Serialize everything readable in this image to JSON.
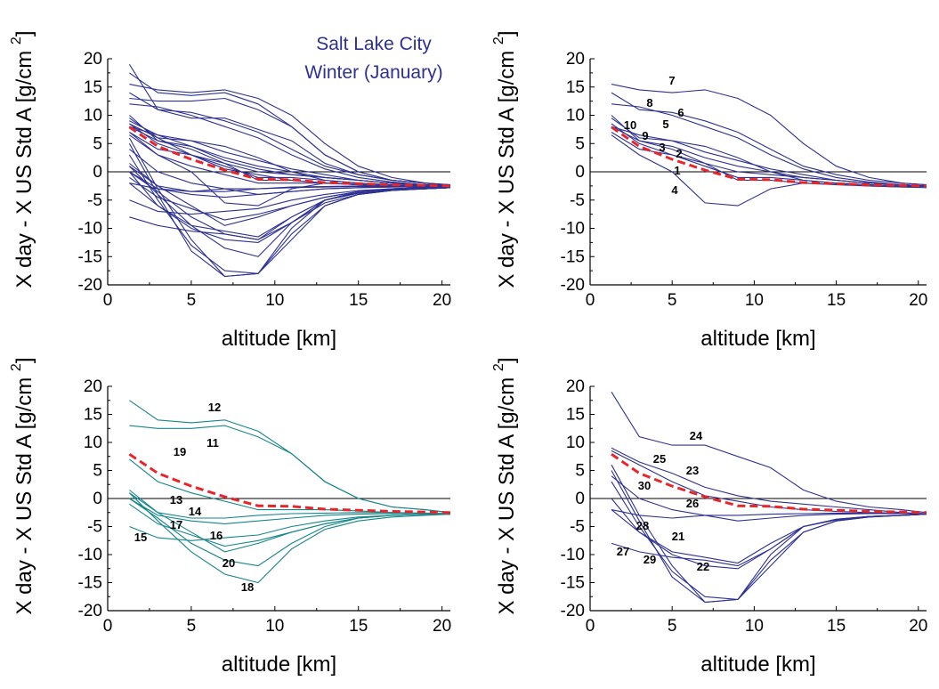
{
  "figure": {
    "title_line1": "Salt Lake City",
    "title_line2": "Winter  (January)",
    "title_color": "#2e3192"
  },
  "chart_data": [
    {
      "type": "line",
      "panel": "top-left",
      "xlabel": "altitude [km]",
      "ylabel": "X day - X US Std A [g/cm 2]",
      "xlim": [
        0,
        20.5
      ],
      "ylim": [
        -20,
        20
      ],
      "x_ticks": [
        "0",
        "5",
        "10",
        "15",
        "20"
      ],
      "y_ticks": [
        "20",
        "15",
        "10",
        "5",
        "0",
        "-5",
        "-10",
        "-15",
        "-20"
      ],
      "zero_line": true,
      "grid": false,
      "colors": {
        "series": "#2e3192",
        "mean": "#e8262a",
        "axis": "#000000"
      },
      "x": [
        1.3,
        3,
        5,
        7,
        9,
        11,
        13,
        15,
        17,
        19,
        20.5
      ],
      "series": [
        {
          "values": [
            7,
            4,
            3,
            1.5,
            -1.5,
            -1.5,
            -2,
            -2.2,
            -2.5,
            -2.7,
            -2.5
          ]
        },
        {
          "values": [
            8,
            5.5,
            4,
            1.5,
            0,
            -0.5,
            -1,
            -1.5,
            -2,
            -2.3,
            -2.5
          ]
        },
        {
          "values": [
            8.5,
            5,
            3,
            1,
            -1,
            -1,
            -1.5,
            -2,
            -2.3,
            -2.5,
            -2.6
          ]
        },
        {
          "values": [
            6.5,
            3,
            0,
            -5.5,
            -6,
            -3,
            -2,
            -2.3,
            -2.5,
            -2.7,
            -2.8
          ]
        },
        {
          "values": [
            9.5,
            6,
            5.5,
            4.5,
            2.5,
            0,
            -1.5,
            -2,
            -2.3,
            -2.5,
            -2.6
          ]
        },
        {
          "values": [
            12,
            11.5,
            10,
            8,
            6,
            3,
            0.5,
            -1,
            -1.8,
            -2.3,
            -2.5
          ]
        },
        {
          "values": [
            15.5,
            14.5,
            14,
            14.5,
            13,
            10,
            5,
            1,
            -1,
            -2,
            -2.3
          ]
        },
        {
          "values": [
            14,
            11,
            10.5,
            9,
            7,
            4,
            1,
            -0.5,
            -1.5,
            -2,
            -2.3
          ]
        },
        {
          "values": [
            10,
            5.5,
            4.5,
            2.5,
            1,
            0,
            -1,
            -1.5,
            -2,
            -2.3,
            -2.5
          ]
        },
        {
          "values": [
            8,
            6.5,
            5.5,
            3.5,
            2,
            0.5,
            -0.5,
            -1.5,
            -2,
            -2.3,
            -2.5
          ]
        },
        {
          "values": [
            13,
            12.5,
            12.5,
            13,
            11,
            8,
            3,
            0,
            -1.5,
            -2,
            -2.5
          ]
        },
        {
          "values": [
            17.5,
            14,
            13.5,
            14,
            12,
            8,
            3,
            0,
            -1.5,
            -2,
            -2.5
          ]
        },
        {
          "values": [
            1,
            -2.5,
            -3.5,
            -3.5,
            -3,
            -2.7,
            -2.6,
            -2.5,
            -2.5,
            -2.6,
            -2.7
          ]
        },
        {
          "values": [
            0,
            -3,
            -4,
            -4.5,
            -4,
            -3.5,
            -3,
            -2.8,
            -2.7,
            -2.6,
            -2.7
          ]
        },
        {
          "values": [
            -5,
            -7,
            -7.5,
            -7,
            -6.5,
            -5,
            -4,
            -3.3,
            -3,
            -2.8,
            -2.8
          ]
        },
        {
          "values": [
            1.5,
            -2.5,
            -6,
            -9.5,
            -8,
            -6,
            -4.5,
            -3.5,
            -3,
            -2.8,
            -2.8
          ]
        },
        {
          "values": [
            -1,
            -4.5,
            -6.5,
            -8.5,
            -7.5,
            -6,
            -4.5,
            -3.5,
            -3,
            -2.8,
            -2.8
          ]
        },
        {
          "values": [
            1,
            -4,
            -9.5,
            -13.5,
            -15,
            -9,
            -5.5,
            -4,
            -3.3,
            -3,
            -2.8
          ]
        },
        {
          "values": [
            7,
            3,
            1,
            -0.5,
            -2,
            -2,
            -2,
            -2.2,
            -2.5,
            -2.7,
            -2.8
          ]
        },
        {
          "values": [
            0,
            -3.5,
            -8,
            -11,
            -12,
            -8,
            -5,
            -3.5,
            -3,
            -2.8,
            -2.8
          ]
        },
        {
          "values": [
            -2,
            -6,
            -9.5,
            -10.5,
            -11.5,
            -8,
            -5,
            -3.8,
            -3.2,
            -3,
            -2.8
          ]
        },
        {
          "values": [
            5,
            -4,
            -14,
            -18.5,
            -18,
            -11,
            -6,
            -4,
            -3.3,
            -3,
            -2.8
          ]
        },
        {
          "values": [
            4,
            0,
            -2,
            -3,
            -4,
            -3.5,
            -3,
            -2.8,
            -2.7,
            -2.7,
            -2.7
          ]
        },
        {
          "values": [
            19,
            11,
            9.5,
            9.5,
            7.5,
            5.5,
            1.5,
            -0.5,
            -1.5,
            -2,
            -2.5
          ]
        },
        {
          "values": [
            9,
            6.5,
            4.5,
            2,
            0.5,
            -0.5,
            -1,
            -1.5,
            -2,
            -2.5,
            -2.7
          ]
        },
        {
          "values": [
            8.5,
            6,
            3,
            0.5,
            -0.5,
            -1.5,
            -2,
            -2.3,
            -2.5,
            -2.6,
            -2.7
          ]
        },
        {
          "values": [
            -2,
            -3,
            -3.5,
            -3,
            -3,
            -2.8,
            -2.7,
            -2.6,
            -2.6,
            -2.7,
            -2.8
          ]
        },
        {
          "values": [
            0,
            -6,
            -10,
            -12,
            -12.5,
            -9,
            -5,
            -3.7,
            -3.2,
            -3,
            -2.8
          ]
        },
        {
          "values": [
            3,
            -5,
            -13,
            -17.5,
            -18,
            -12,
            -6,
            -4,
            -3.3,
            -3,
            -2.8
          ]
        },
        {
          "values": [
            6,
            -3,
            -12,
            -18.5,
            -18,
            -10,
            -5,
            -3.7,
            -3.2,
            -3,
            -2.8
          ]
        },
        {
          "values": [
            -8,
            -9.5,
            -10.5,
            -11,
            -12,
            -9,
            -5,
            -3.8,
            -3.2,
            -3,
            -2.8
          ]
        }
      ],
      "mean_series": {
        "values": [
          7.9,
          4.5,
          2.2,
          0.3,
          -1.3,
          -1.4,
          -1.9,
          -2.1,
          -2.3,
          -2.4,
          -2.5
        ]
      }
    },
    {
      "type": "line",
      "panel": "top-right",
      "xlabel": "altitude [km]",
      "ylabel": "X day - X US Std A [g/cm 2]",
      "xlim": [
        0,
        20.5
      ],
      "ylim": [
        -20,
        20
      ],
      "x_ticks": [
        "0",
        "5",
        "10",
        "15",
        "20"
      ],
      "y_ticks": [
        "20",
        "15",
        "10",
        "5",
        "0",
        "-5",
        "-10",
        "-15",
        "-20"
      ],
      "zero_line": true,
      "grid": false,
      "colors": {
        "series": "#2e3192",
        "mean": "#e8262a",
        "axis": "#000000"
      },
      "x": [
        1.3,
        3,
        5,
        7,
        9,
        11,
        13,
        15,
        17,
        19,
        20.5
      ],
      "series": [
        {
          "label": "1",
          "values": [
            7,
            4,
            3,
            1.5,
            -1.5,
            -1.5,
            -2,
            -2.2,
            -2.5,
            -2.7,
            -2.5
          ]
        },
        {
          "label": "2",
          "values": [
            8,
            5.5,
            4,
            1.5,
            0,
            -0.5,
            -1,
            -1.5,
            -2,
            -2.3,
            -2.5
          ]
        },
        {
          "label": "3",
          "values": [
            8.5,
            5,
            3,
            1,
            -1,
            -1,
            -1.5,
            -2,
            -2.3,
            -2.5,
            -2.6
          ]
        },
        {
          "label": "4",
          "values": [
            6.5,
            3,
            0,
            -5.5,
            -6,
            -3,
            -2,
            -2.3,
            -2.5,
            -2.7,
            -2.8
          ]
        },
        {
          "label": "5",
          "values": [
            9.5,
            6,
            5.5,
            4.5,
            2.5,
            0,
            -1.5,
            -2,
            -2.3,
            -2.5,
            -2.6
          ]
        },
        {
          "label": "6",
          "values": [
            12,
            11.5,
            10,
            8,
            6,
            3,
            0.5,
            -1,
            -1.8,
            -2.3,
            -2.5
          ]
        },
        {
          "label": "7",
          "values": [
            15.5,
            14.5,
            14,
            14.5,
            13,
            10,
            5,
            1,
            -1,
            -2,
            -2.3
          ]
        },
        {
          "label": "8",
          "values": [
            14,
            11,
            10.5,
            9,
            7,
            4,
            1,
            -0.5,
            -1.5,
            -2,
            -2.3
          ]
        },
        {
          "label": "9",
          "values": [
            10,
            5.5,
            4.5,
            2.5,
            1,
            0,
            -1,
            -1.5,
            -2,
            -2.3,
            -2.5
          ]
        },
        {
          "label": "10",
          "values": [
            8,
            6.5,
            5.5,
            3.5,
            2,
            0.5,
            -0.5,
            -1.5,
            -2,
            -2.3,
            -2.5
          ]
        }
      ],
      "mean_series": {
        "values": [
          7.9,
          4.5,
          2.2,
          0.3,
          -1.3,
          -1.4,
          -1.9,
          -2.1,
          -2.3,
          -2.4,
          -2.5
        ]
      }
    },
    {
      "type": "line",
      "panel": "bottom-left",
      "xlabel": "altitude [km]",
      "ylabel": "X day - X US Std A [g/cm 2]",
      "xlim": [
        0,
        20.5
      ],
      "ylim": [
        -20,
        20
      ],
      "x_ticks": [
        "0",
        "5",
        "10",
        "15",
        "20"
      ],
      "y_ticks": [
        "20",
        "15",
        "10",
        "5",
        "0",
        "-5",
        "-10",
        "-15",
        "-20"
      ],
      "zero_line": true,
      "grid": false,
      "colors": {
        "series": "#16868a",
        "mean": "#e8262a",
        "axis": "#000000"
      },
      "x": [
        1.3,
        3,
        5,
        7,
        9,
        11,
        13,
        15,
        17,
        19,
        20.5
      ],
      "series": [
        {
          "label": "11",
          "values": [
            13,
            12.5,
            12.5,
            13,
            11,
            8,
            3,
            0,
            -1.5,
            -2,
            -2.5
          ]
        },
        {
          "label": "12",
          "values": [
            17.5,
            14,
            13.5,
            14,
            12,
            8,
            3,
            0,
            -1.5,
            -2,
            -2.5
          ]
        },
        {
          "label": "13",
          "values": [
            1,
            -2.5,
            -3.5,
            -3.5,
            -3,
            -2.7,
            -2.6,
            -2.5,
            -2.5,
            -2.6,
            -2.7
          ]
        },
        {
          "label": "14",
          "values": [
            0,
            -3,
            -4,
            -4.5,
            -4,
            -3.5,
            -3,
            -2.8,
            -2.7,
            -2.6,
            -2.7
          ]
        },
        {
          "label": "15",
          "values": [
            -5,
            -7,
            -7.5,
            -7,
            -6.5,
            -5,
            -4,
            -3.3,
            -3,
            -2.8,
            -2.8
          ]
        },
        {
          "label": "16",
          "values": [
            1.5,
            -2.5,
            -6,
            -9.5,
            -8,
            -6,
            -4.5,
            -3.5,
            -3,
            -2.8,
            -2.8
          ]
        },
        {
          "label": "17",
          "values": [
            -1,
            -4.5,
            -6.5,
            -8.5,
            -7.5,
            -6,
            -4.5,
            -3.5,
            -3,
            -2.8,
            -2.8
          ]
        },
        {
          "label": "18",
          "values": [
            1,
            -4,
            -9.5,
            -13.5,
            -15,
            -9,
            -5.5,
            -4,
            -3.3,
            -3,
            -2.8
          ]
        },
        {
          "label": "19",
          "values": [
            7,
            3,
            1,
            -0.5,
            -2,
            -2,
            -2,
            -2.2,
            -2.5,
            -2.7,
            -2.8
          ]
        },
        {
          "label": "20",
          "values": [
            0,
            -3.5,
            -8,
            -11,
            -12,
            -8,
            -5,
            -3.5,
            -3,
            -2.8,
            -2.8
          ]
        }
      ],
      "mean_series": {
        "values": [
          7.9,
          4.5,
          2.2,
          0.3,
          -1.3,
          -1.4,
          -1.9,
          -2.1,
          -2.3,
          -2.4,
          -2.5
        ]
      }
    },
    {
      "type": "line",
      "panel": "bottom-right",
      "xlabel": "altitude [km]",
      "ylabel": "X day - X US Std A [g/cm 2]",
      "xlim": [
        0,
        20.5
      ],
      "ylim": [
        -20,
        20
      ],
      "x_ticks": [
        "0",
        "5",
        "10",
        "15",
        "20"
      ],
      "y_ticks": [
        "20",
        "15",
        "10",
        "5",
        "0",
        "-5",
        "-10",
        "-15",
        "-20"
      ],
      "zero_line": true,
      "grid": false,
      "colors": {
        "series": "#2e3192",
        "mean": "#e8262a",
        "axis": "#000000"
      },
      "x": [
        1.3,
        3,
        5,
        7,
        9,
        11,
        13,
        15,
        17,
        19,
        20.5
      ],
      "series": [
        {
          "label": "21",
          "values": [
            -2,
            -6,
            -9.5,
            -10.5,
            -11.5,
            -8,
            -5,
            -3.8,
            -3.2,
            -3,
            -2.8
          ]
        },
        {
          "label": "22",
          "values": [
            5,
            -4,
            -14,
            -18.5,
            -18,
            -11,
            -6,
            -4,
            -3.3,
            -3,
            -2.8
          ]
        },
        {
          "label": "23",
          "values": [
            4,
            0,
            -2,
            -3,
            -4,
            -3.5,
            -3,
            -2.8,
            -2.7,
            -2.7,
            -2.7
          ]
        },
        {
          "label": "24",
          "values": [
            19,
            11,
            9.5,
            9.5,
            7.5,
            5.5,
            1.5,
            -0.5,
            -1.5,
            -2,
            -2.5
          ]
        },
        {
          "label": "25",
          "values": [
            9,
            6.5,
            4.5,
            2,
            0.5,
            -0.5,
            -1,
            -1.5,
            -2,
            -2.5,
            -2.7
          ]
        },
        {
          "label": "26",
          "values": [
            8.5,
            6,
            3,
            0.5,
            -0.5,
            -1.5,
            -2,
            -2.3,
            -2.5,
            -2.6,
            -2.7
          ]
        },
        {
          "label": "27",
          "values": [
            -2,
            -3,
            -3.5,
            -3,
            -3,
            -2.8,
            -2.7,
            -2.6,
            -2.6,
            -2.7,
            -2.8
          ]
        },
        {
          "label": "28",
          "values": [
            0,
            -6,
            -10,
            -12,
            -12.5,
            -9,
            -5,
            -3.7,
            -3.2,
            -3,
            -2.8
          ]
        },
        {
          "label": "29",
          "values": [
            3,
            -5,
            -13,
            -17.5,
            -18,
            -12,
            -6,
            -4,
            -3.3,
            -3,
            -2.8
          ]
        },
        {
          "label": "30",
          "values": [
            6,
            -3,
            -12,
            -18.5,
            -18,
            -10,
            -5,
            -3.7,
            -3.2,
            -3,
            -2.8
          ]
        },
        {
          "values": [
            -8,
            -9.5,
            -10.5,
            -11,
            -12,
            -9,
            -5,
            -3.8,
            -3.2,
            -3,
            -2.8
          ]
        }
      ],
      "mean_series": {
        "values": [
          7.9,
          4.5,
          2.2,
          0.3,
          -1.3,
          -1.4,
          -1.9,
          -2.1,
          -2.3,
          -2.4,
          -2.5
        ]
      }
    }
  ]
}
